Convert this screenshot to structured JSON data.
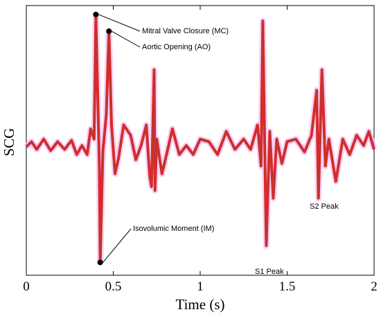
{
  "chart_data": {
    "type": "line",
    "xlabel": "Time (s)",
    "ylabel": "SCG",
    "xlim": [
      0,
      2
    ],
    "xticks": [
      0,
      0.5,
      1,
      1.5,
      2
    ],
    "ylim": [
      -1.05,
      1.05
    ],
    "series": [
      {
        "color": "#e3262b",
        "x": [
          0,
          0.03,
          0.06,
          0.1,
          0.14,
          0.18,
          0.22,
          0.26,
          0.29,
          0.32,
          0.35,
          0.37,
          0.39,
          0.4,
          0.42,
          0.425,
          0.44,
          0.46,
          0.475,
          0.49,
          0.51,
          0.53,
          0.56,
          0.6,
          0.63,
          0.66,
          0.69,
          0.71,
          0.72,
          0.735,
          0.74,
          0.75,
          0.78,
          0.81,
          0.84,
          0.88,
          0.92,
          0.96,
          1.0,
          1.05,
          1.1,
          1.15,
          1.2,
          1.25,
          1.29,
          1.33,
          1.35,
          1.36,
          1.38,
          1.4,
          1.42,
          1.44,
          1.47,
          1.5,
          1.55,
          1.6,
          1.64,
          1.67,
          1.68,
          1.7,
          1.72,
          1.74,
          1.78,
          1.82,
          1.86,
          1.9,
          1.94,
          1.97,
          2.0
        ],
        "values": [
          -0.05,
          -0.01,
          -0.07,
          0.01,
          -0.08,
          -0.01,
          -0.07,
          0,
          -0.11,
          -0.04,
          -0.11,
          0.09,
          0.01,
          0.98,
          -0.2,
          -0.95,
          -0.09,
          0.2,
          0.85,
          0.12,
          -0.26,
          -0.14,
          0.12,
          0.04,
          -0.15,
          -0.04,
          0.12,
          -0.28,
          -0.36,
          0.55,
          -0.39,
          0.01,
          -0.26,
          -0.09,
          0.09,
          -0.11,
          -0.04,
          -0.11,
          0.01,
          -0.01,
          -0.11,
          0.07,
          -0.07,
          0.01,
          -0.07,
          0.12,
          -0.2,
          0.93,
          -0.82,
          0.07,
          -0.45,
          0.01,
          -0.18,
          -0.01,
          0.01,
          -0.09,
          0.04,
          0.39,
          -0.45,
          0.55,
          -0.2,
          0.01,
          -0.32,
          0.01,
          -0.11,
          0.04,
          -0.04,
          0.07,
          -0.07
        ]
      }
    ],
    "annotations": [
      {
        "text": "Mitral Valve Closure (MC)",
        "x": 0.4,
        "y": 0.98
      },
      {
        "text": "Aortic Opening (AO)",
        "x": 0.475,
        "y": 0.85
      },
      {
        "text": "Isovolumic Moment (IM)",
        "x": 0.425,
        "y": -0.95
      },
      {
        "text": "S1 Peak"
      },
      {
        "text": "S2 Peak"
      }
    ]
  }
}
